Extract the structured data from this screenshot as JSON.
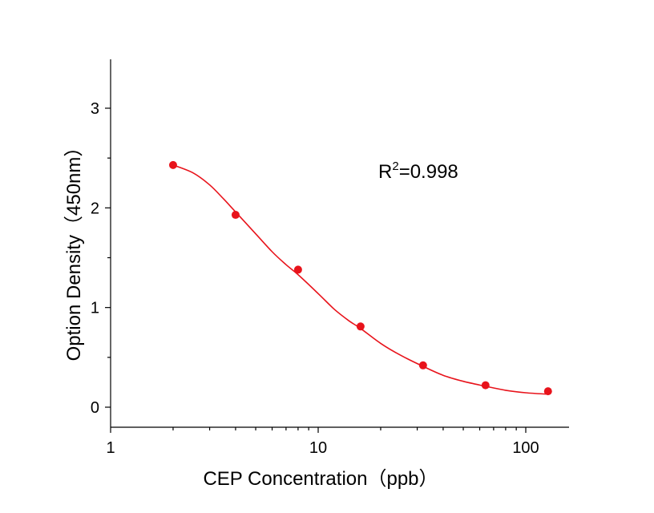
{
  "chart_data": {
    "type": "scatter",
    "xlabel": "CEP Concentration（ppb）",
    "ylabel": "Option Density（450nm）",
    "xscale": "log",
    "xlim": [
      1,
      160
    ],
    "ylim": [
      -0.2,
      3.5
    ],
    "grid": false,
    "x_ticks": [
      1,
      10,
      100
    ],
    "x_tick_labels": [
      "1",
      "10",
      "100"
    ],
    "y_ticks": [
      0,
      1,
      2,
      3
    ],
    "y_tick_labels": [
      "0",
      "1",
      "2",
      "3"
    ],
    "series": [
      {
        "color": "#e8131b",
        "x": [
          2,
          4,
          8,
          16,
          32,
          64,
          128
        ],
        "y": [
          2.43,
          1.93,
          1.38,
          0.81,
          0.42,
          0.22,
          0.16
        ]
      }
    ],
    "fit_curve": {
      "color": "#e8131b",
      "x": [
        2,
        2.5,
        3,
        3.5,
        4,
        5,
        6,
        7,
        8,
        10,
        12,
        14,
        16,
        20,
        25,
        32,
        40,
        50,
        64,
        80,
        100,
        128
      ],
      "y": [
        2.43,
        2.35,
        2.23,
        2.09,
        1.96,
        1.74,
        1.56,
        1.43,
        1.33,
        1.14,
        0.98,
        0.87,
        0.79,
        0.64,
        0.52,
        0.41,
        0.32,
        0.26,
        0.21,
        0.17,
        0.145,
        0.13
      ]
    },
    "annotation": {
      "base": "R",
      "sup": "2",
      "rest": "=0.998"
    }
  }
}
